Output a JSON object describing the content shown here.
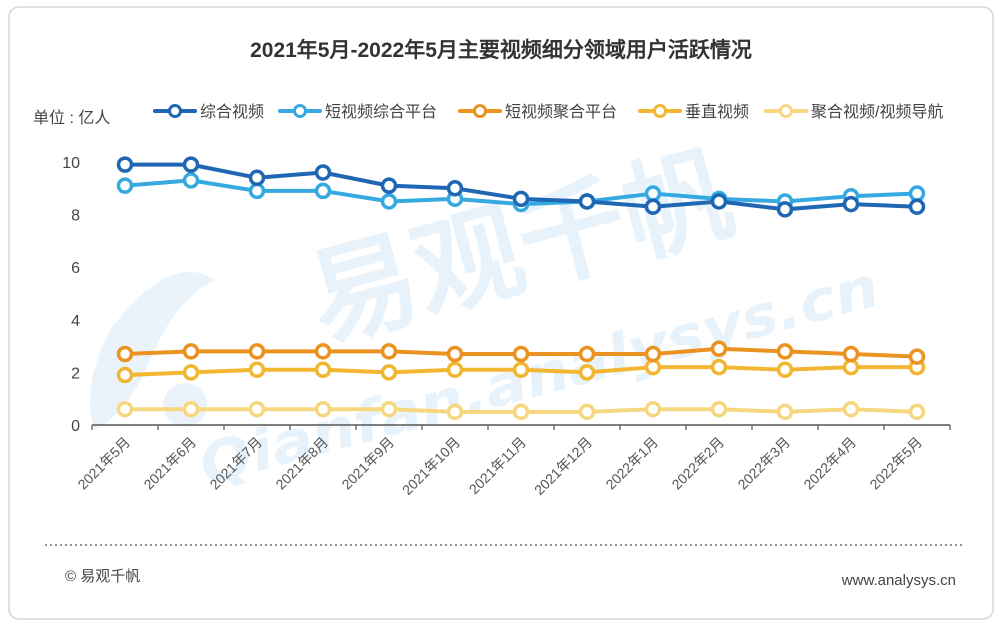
{
  "chart_data": {
    "type": "line",
    "title": "2021年5月-2022年5月主要视频细分领域用户活跃情况",
    "unit_label": "单位 : 亿人",
    "x": [
      "2021年5月",
      "2021年6月",
      "2021年7月",
      "2021年8月",
      "2021年9月",
      "2021年10月",
      "2021年11月",
      "2021年12月",
      "2022年1月",
      "2022年2月",
      "2022年3月",
      "2022年4月",
      "2022年5月"
    ],
    "ylim": [
      0,
      10
    ],
    "yticks": [
      0,
      2,
      4,
      6,
      8,
      10
    ],
    "grid": false,
    "legend_position": "top",
    "series": [
      {
        "name": "综合视频",
        "color": "#1f66b3",
        "values": [
          9.9,
          9.9,
          9.4,
          9.6,
          9.1,
          9.0,
          8.6,
          8.5,
          8.3,
          8.5,
          8.2,
          8.4,
          8.3
        ]
      },
      {
        "name": "短视频综合平台",
        "color": "#36a9e1",
        "values": [
          9.1,
          9.3,
          8.9,
          8.9,
          8.5,
          8.6,
          8.4,
          8.5,
          8.8,
          8.6,
          8.5,
          8.7,
          8.8
        ]
      },
      {
        "name": "短视频聚合平台",
        "color": "#ea9321",
        "values": [
          2.7,
          2.8,
          2.8,
          2.8,
          2.8,
          2.7,
          2.7,
          2.7,
          2.7,
          2.9,
          2.8,
          2.7,
          2.6
        ]
      },
      {
        "name": "垂直视频",
        "color": "#f2b632",
        "values": [
          1.9,
          2.0,
          2.1,
          2.1,
          2.0,
          2.1,
          2.1,
          2.0,
          2.2,
          2.2,
          2.1,
          2.2,
          2.2
        ]
      },
      {
        "name": "聚合视频/视频导航",
        "color": "#f6d77f",
        "values": [
          0.6,
          0.6,
          0.6,
          0.6,
          0.6,
          0.5,
          0.5,
          0.5,
          0.6,
          0.6,
          0.5,
          0.6,
          0.5
        ]
      }
    ]
  },
  "footer": {
    "copyright": "© 易观千帆",
    "website": "www.analysys.cn"
  },
  "watermark": {
    "brand": "易观千帆",
    "url": "Qianfan.analysys.cn"
  },
  "colors": {
    "axis": "#555555",
    "frame": "#d6d6d6",
    "watermark": "#d7e8f6"
  }
}
